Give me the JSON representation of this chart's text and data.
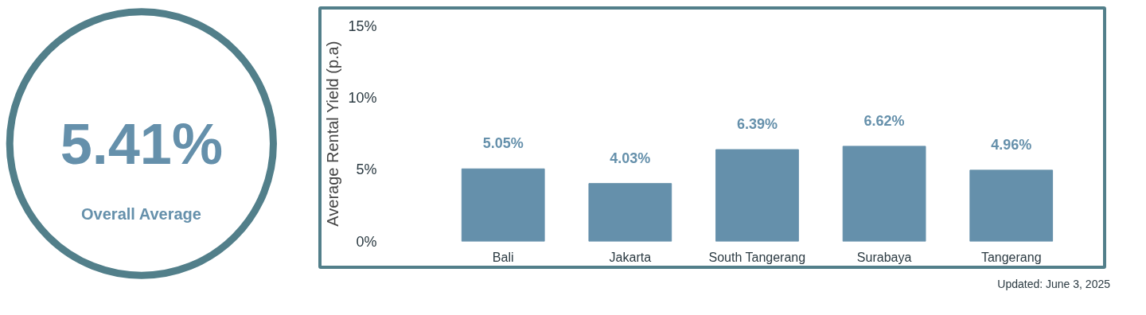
{
  "chart_data": [
    {
      "type": "other",
      "title": "5.41%",
      "subtitle": "Overall Average",
      "color": "#6590ab"
    },
    {
      "type": "bar",
      "ylabel": "Average Rental Yield (p.a)",
      "categories": [
        "Bali",
        "Jakarta",
        "South Tangerang",
        "Surabaya",
        "Tangerang"
      ],
      "values": [
        5.05,
        4.03,
        6.39,
        6.62,
        4.96
      ],
      "color": "#6590ab",
      "ylim": [
        0,
        15
      ],
      "yticks": [
        {
          "value": 0,
          "label": "0%"
        },
        {
          "value": 5,
          "label": "5%"
        },
        {
          "value": 10,
          "label": "10%"
        },
        {
          "value": 15,
          "label": "15%"
        }
      ],
      "data_labels": true,
      "value_labels": [
        "5.05%",
        "4.03%",
        "6.39%",
        "6.62%",
        "4.96%"
      ],
      "grid": false,
      "annotations": [
        "Updated: June 3, 2025"
      ]
    }
  ]
}
